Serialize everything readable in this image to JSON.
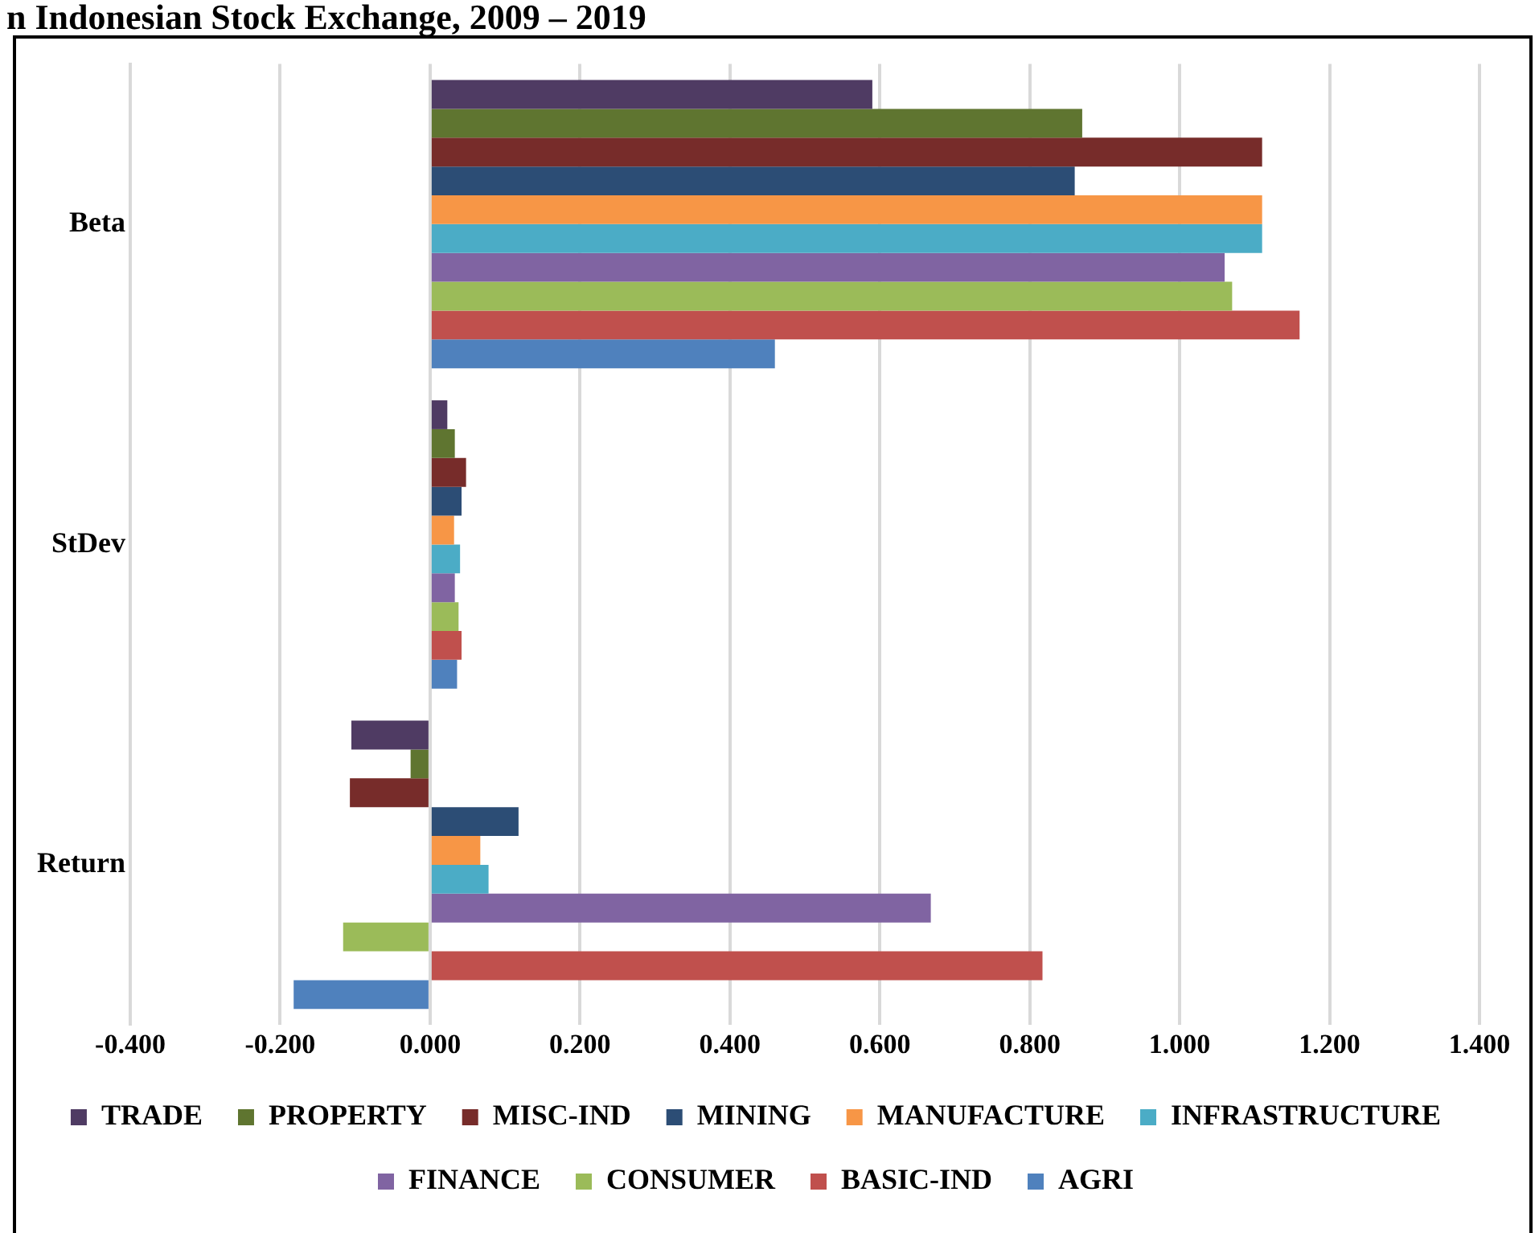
{
  "chart_data": {
    "type": "bar",
    "orientation": "horizontal",
    "title": "n Indonesian Stock Exchange, 2009 – 2019",
    "categories": [
      "Beta",
      "StDev",
      "Return"
    ],
    "series": [
      {
        "name": "TRADE",
        "color": "#4f3b63",
        "values": [
          0.59,
          0.023,
          -0.105
        ]
      },
      {
        "name": "PROPERTY",
        "color": "#5f7530",
        "values": [
          0.87,
          0.033,
          -0.026
        ]
      },
      {
        "name": "MISC-IND",
        "color": "#772c2a",
        "values": [
          1.11,
          0.048,
          -0.107
        ]
      },
      {
        "name": "MINING",
        "color": "#2c4d75",
        "values": [
          0.86,
          0.042,
          0.118
        ]
      },
      {
        "name": "MANUFACTURE",
        "color": "#f79646",
        "values": [
          1.11,
          0.032,
          0.067
        ]
      },
      {
        "name": "INFRASTRUCTURE",
        "color": "#4bacc6",
        "values": [
          1.11,
          0.04,
          0.078
        ]
      },
      {
        "name": "FINANCE",
        "color": "#8064a2",
        "values": [
          1.06,
          0.033,
          0.668
        ]
      },
      {
        "name": "CONSUMER",
        "color": "#9bbb59",
        "values": [
          1.07,
          0.038,
          -0.116
        ]
      },
      {
        "name": "BASIC-IND",
        "color": "#c0504d",
        "values": [
          1.16,
          0.042,
          0.817
        ]
      },
      {
        "name": "AGRI",
        "color": "#4f81bd",
        "values": [
          0.46,
          0.036,
          -0.182
        ]
      }
    ],
    "xlim": [
      -0.4,
      1.4
    ],
    "xticks": [
      {
        "value": -0.4,
        "label": "-0.400"
      },
      {
        "value": -0.2,
        "label": "-0.200"
      },
      {
        "value": 0,
        "label": "0.000"
      },
      {
        "value": 0.2,
        "label": "0.200"
      },
      {
        "value": 0.4,
        "label": "0.400"
      },
      {
        "value": 0.6,
        "label": "0.600"
      },
      {
        "value": 0.8,
        "label": "0.800"
      },
      {
        "value": 1,
        "label": "1.000"
      },
      {
        "value": 1.2,
        "label": "1.200"
      },
      {
        "value": 1.4,
        "label": "1.400"
      }
    ],
    "grid": "x",
    "legend": "bottom"
  }
}
